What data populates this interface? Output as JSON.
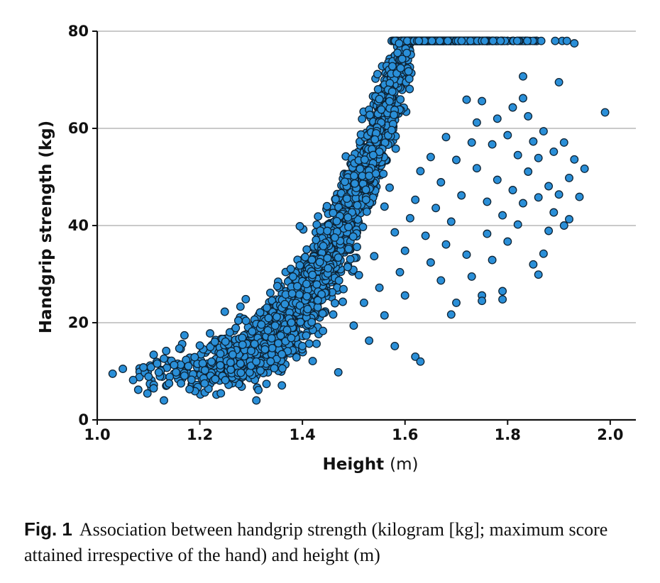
{
  "chart_data": {
    "type": "scatter",
    "xlabel": "Height",
    "xlabel_unit": "(m)",
    "ylabel": "Handgrip strength (kg)",
    "xlim": [
      1.0,
      2.05
    ],
    "ylim": [
      0,
      80
    ],
    "xticks": [
      1.0,
      1.2,
      1.4,
      1.6,
      1.8,
      2.0
    ],
    "xtick_labels": [
      "1.0",
      "1.2",
      "1.4",
      "1.6",
      "1.8",
      "2.0"
    ],
    "yticks": [
      0,
      20,
      40,
      60,
      80
    ],
    "ytick_labels": [
      "0",
      "20",
      "40",
      "60",
      "80"
    ],
    "grid": "horizontal",
    "marker_color": "#2a8fd8",
    "marker_edge": "#0d2233",
    "points": [
      [
        1.03,
        9.5
      ],
      [
        1.05,
        10.5
      ],
      [
        1.07,
        8.2
      ],
      [
        1.08,
        6.2
      ],
      [
        1.09,
        10.8
      ],
      [
        1.1,
        8.9
      ],
      [
        1.11,
        13.4
      ],
      [
        1.11,
        6.5
      ],
      [
        1.12,
        9.8
      ],
      [
        1.13,
        12.6
      ],
      [
        1.13,
        4.0
      ],
      [
        1.14,
        7.5
      ],
      [
        1.15,
        11.3
      ],
      [
        1.16,
        14.7
      ],
      [
        1.17,
        17.4
      ],
      [
        1.17,
        9.1
      ],
      [
        1.18,
        6.3
      ],
      [
        1.19,
        12.9
      ],
      [
        1.2,
        15.3
      ],
      [
        1.21,
        10.2
      ],
      [
        1.22,
        17.8
      ],
      [
        1.23,
        8.4
      ],
      [
        1.24,
        13.6
      ],
      [
        1.25,
        16.1
      ],
      [
        1.26,
        11.8
      ],
      [
        1.27,
        18.9
      ],
      [
        1.28,
        9.7
      ],
      [
        1.29,
        20.4
      ],
      [
        1.3,
        14.2
      ],
      [
        1.31,
        12.0
      ],
      [
        1.32,
        19.6
      ],
      [
        1.33,
        7.4
      ],
      [
        1.34,
        16.8
      ],
      [
        1.35,
        21.2
      ],
      [
        1.36,
        7.1
      ],
      [
        1.36,
        13.5
      ],
      [
        1.37,
        18.5
      ],
      [
        1.38,
        26.0
      ],
      [
        1.39,
        27.5
      ],
      [
        1.4,
        15.2
      ],
      [
        1.41,
        22.8
      ],
      [
        1.42,
        12.1
      ],
      [
        1.43,
        24.6
      ],
      [
        1.44,
        18.3
      ],
      [
        1.45,
        31.2
      ],
      [
        1.46,
        21.7
      ],
      [
        1.47,
        33.4
      ],
      [
        1.47,
        9.8
      ],
      [
        1.48,
        26.9
      ],
      [
        1.49,
        35.2
      ],
      [
        1.5,
        19.4
      ],
      [
        1.51,
        29.8
      ],
      [
        1.52,
        24.1
      ],
      [
        1.53,
        16.3
      ],
      [
        1.54,
        33.7
      ],
      [
        1.55,
        27.2
      ],
      [
        1.56,
        43.9
      ],
      [
        1.56,
        21.5
      ],
      [
        1.57,
        47.8
      ],
      [
        1.58,
        38.6
      ],
      [
        1.58,
        15.2
      ],
      [
        1.59,
        30.4
      ],
      [
        1.6,
        34.8
      ],
      [
        1.6,
        25.6
      ],
      [
        1.61,
        41.5
      ],
      [
        1.62,
        45.3
      ],
      [
        1.62,
        13.0
      ],
      [
        1.63,
        51.2
      ],
      [
        1.63,
        12.0
      ],
      [
        1.64,
        37.9
      ],
      [
        1.65,
        32.4
      ],
      [
        1.65,
        54.1
      ],
      [
        1.66,
        43.6
      ],
      [
        1.67,
        28.7
      ],
      [
        1.67,
        48.9
      ],
      [
        1.68,
        36.1
      ],
      [
        1.68,
        58.2
      ],
      [
        1.69,
        40.8
      ],
      [
        1.69,
        21.7
      ],
      [
        1.7,
        53.5
      ],
      [
        1.7,
        24.1
      ],
      [
        1.71,
        46.2
      ],
      [
        1.72,
        65.9
      ],
      [
        1.72,
        34.0
      ],
      [
        1.73,
        57.1
      ],
      [
        1.73,
        29.5
      ],
      [
        1.74,
        51.8
      ],
      [
        1.74,
        61.2
      ],
      [
        1.75,
        65.6
      ],
      [
        1.75,
        25.6
      ],
      [
        1.75,
        24.5
      ],
      [
        1.76,
        44.9
      ],
      [
        1.76,
        38.3
      ],
      [
        1.77,
        56.7
      ],
      [
        1.77,
        32.9
      ],
      [
        1.78,
        49.4
      ],
      [
        1.78,
        62.0
      ],
      [
        1.79,
        42.1
      ],
      [
        1.79,
        26.5
      ],
      [
        1.79,
        24.8
      ],
      [
        1.8,
        58.6
      ],
      [
        1.8,
        36.7
      ],
      [
        1.81,
        47.3
      ],
      [
        1.81,
        64.3
      ],
      [
        1.82,
        54.5
      ],
      [
        1.82,
        40.2
      ],
      [
        1.83,
        70.7
      ],
      [
        1.83,
        66.2
      ],
      [
        1.83,
        44.6
      ],
      [
        1.84,
        62.5
      ],
      [
        1.84,
        51.1
      ],
      [
        1.85,
        57.3
      ],
      [
        1.85,
        32.0
      ],
      [
        1.86,
        53.9
      ],
      [
        1.86,
        29.9
      ],
      [
        1.86,
        45.8
      ],
      [
        1.87,
        34.2
      ],
      [
        1.87,
        59.4
      ],
      [
        1.88,
        48.1
      ],
      [
        1.88,
        38.9
      ],
      [
        1.89,
        55.2
      ],
      [
        1.89,
        42.7
      ],
      [
        1.9,
        69.5
      ],
      [
        1.9,
        46.4
      ],
      [
        1.91,
        40.0
      ],
      [
        1.91,
        57.1
      ],
      [
        1.92,
        41.3
      ],
      [
        1.92,
        49.8
      ],
      [
        1.93,
        77.5
      ],
      [
        1.93,
        53.6
      ],
      [
        1.94,
        45.9
      ],
      [
        1.95,
        51.7
      ],
      [
        1.99,
        63.3
      ]
    ]
  },
  "caption": {
    "label": "Fig. 1",
    "text": "Association between handgrip strength (kilogram [kg]; maximum score attained irrespective of the hand) and height (m)"
  }
}
